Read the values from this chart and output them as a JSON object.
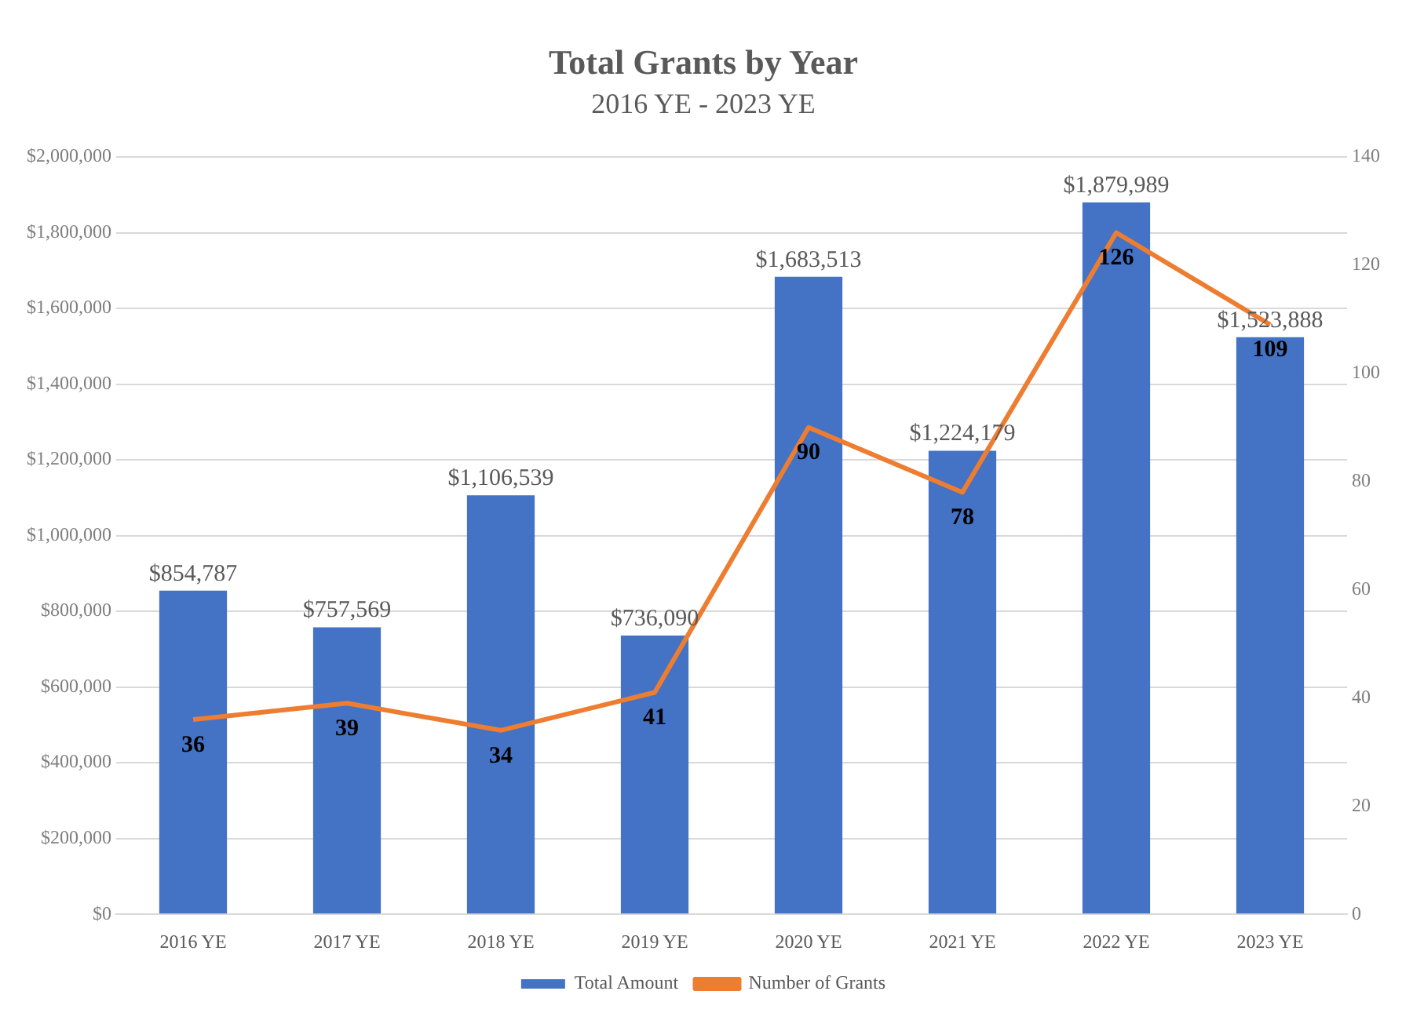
{
  "chart_data": {
    "type": "bar",
    "title": "Total Grants by Year",
    "subtitle": "2016 YE - 2023 YE",
    "categories": [
      "2016 YE",
      "2017 YE",
      "2018 YE",
      "2019 YE",
      "2020 YE",
      "2021 YE",
      "2022 YE",
      "2023 YE"
    ],
    "series": [
      {
        "name": "Total Amount",
        "color": "#4472c4",
        "values": [
          854787,
          757569,
          1106539,
          736090,
          1683513,
          1224179,
          1879989,
          1523888
        ],
        "value_labels": [
          "$854,787",
          "$757,569",
          "$1,106,539",
          "$736,090",
          "$1,683,513",
          "$1,224,179",
          "$1,879,989",
          "$1,523,888"
        ]
      },
      {
        "name": "Number of Grants",
        "type": "line",
        "axis": "y2",
        "color": "#ed7d31",
        "values": [
          36,
          39,
          34,
          41,
          90,
          78,
          126,
          109
        ]
      }
    ],
    "data_labels": true,
    "ylim": [
      0,
      2000000
    ],
    "yticks": [
      {
        "value": 0,
        "label": "$0"
      },
      {
        "value": 200000,
        "label": "$200,000"
      },
      {
        "value": 400000,
        "label": "$400,000"
      },
      {
        "value": 600000,
        "label": "$600,000"
      },
      {
        "value": 800000,
        "label": "$800,000"
      },
      {
        "value": 1000000,
        "label": "$1,000,000"
      },
      {
        "value": 1200000,
        "label": "$1,200,000"
      },
      {
        "value": 1400000,
        "label": "$1,400,000"
      },
      {
        "value": 1600000,
        "label": "$1,600,000"
      },
      {
        "value": 1800000,
        "label": "$1,800,000"
      },
      {
        "value": 2000000,
        "label": "$2,000,000"
      }
    ],
    "y2lim": [
      0,
      140
    ],
    "y2ticks": [
      0,
      20,
      40,
      60,
      80,
      100,
      120,
      140
    ],
    "grid": "y",
    "legend": "bottom",
    "marker": "none",
    "line_style": "solid"
  }
}
